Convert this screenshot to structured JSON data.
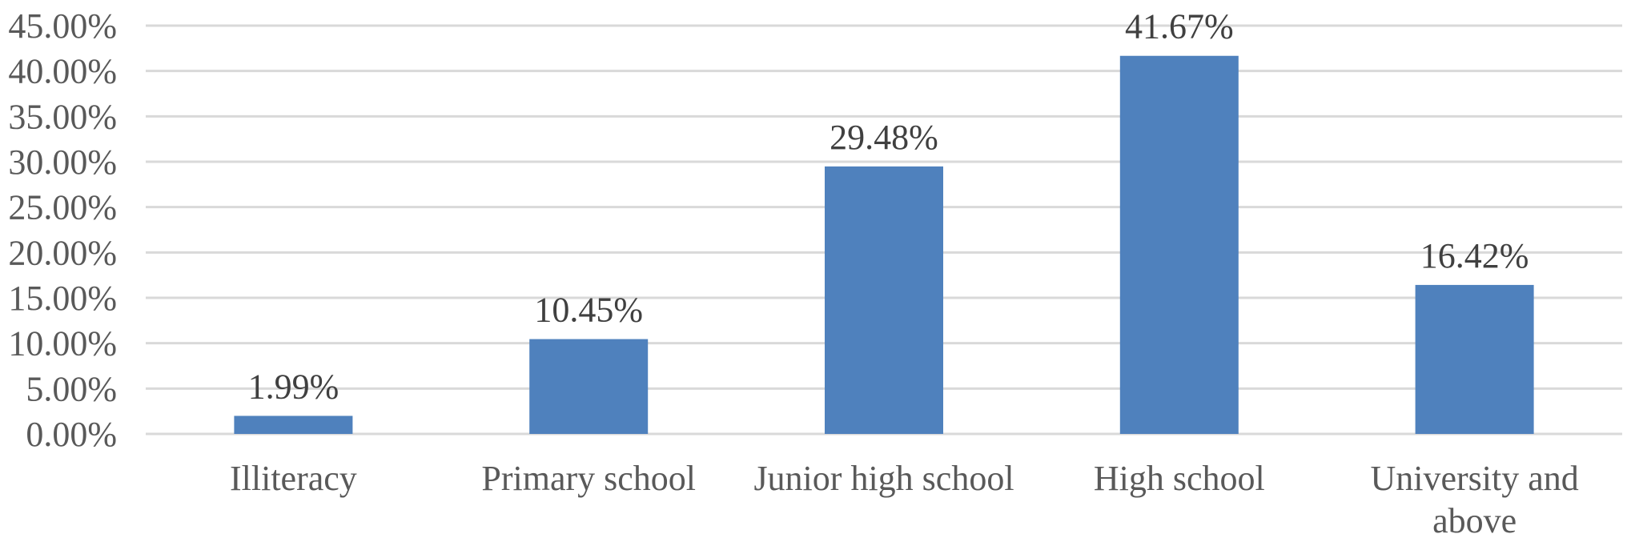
{
  "chart_data": {
    "type": "bar",
    "title": "",
    "xlabel": "",
    "ylabel": "",
    "categories": [
      [
        "Illiteracy"
      ],
      [
        "Primary school"
      ],
      [
        "Junior high school"
      ],
      [
        "High school"
      ],
      [
        "University and",
        "above"
      ]
    ],
    "values": [
      1.99,
      10.45,
      29.48,
      41.67,
      16.42
    ],
    "data_labels": [
      "1.99%",
      "10.45%",
      "29.48%",
      "41.67%",
      "16.42%"
    ],
    "ylim": [
      0,
      45
    ],
    "yticks": [
      0,
      5,
      10,
      15,
      20,
      25,
      30,
      35,
      40,
      45
    ],
    "ytick_labels": [
      "0.00%",
      "5.00%",
      "10.00%",
      "15.00%",
      "20.00%",
      "25.00%",
      "30.00%",
      "35.00%",
      "40.00%",
      "45.00%"
    ],
    "grid": true,
    "legend": "none",
    "colors": {
      "bar": "#4f81bd"
    }
  }
}
